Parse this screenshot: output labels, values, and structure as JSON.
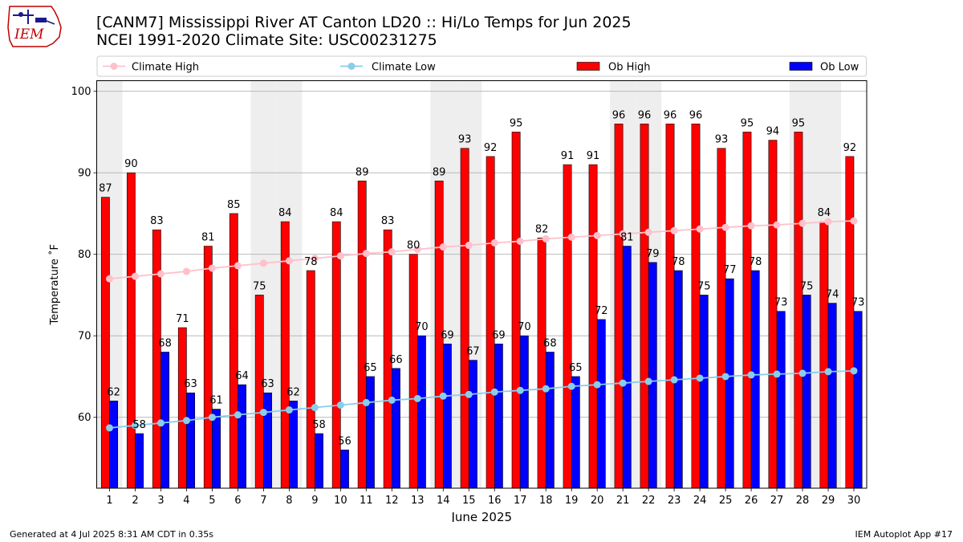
{
  "header": {
    "logo_text": "IEM",
    "title": "[CANM7] Mississippi River  AT Canton LD20 :: Hi/Lo Temps for Jun 2025",
    "subtitle": "NCEI 1991-2020 Climate Site: USC00231275"
  },
  "footer": {
    "generated": "Generated at 4 Jul 2025 8:31 AM CDT in 0.35s",
    "app": "IEM Autoplot App #17"
  },
  "colors": {
    "ob_high": "#ff0000",
    "ob_low": "#0000ff",
    "climate_high": "#ffc0cb",
    "climate_low": "#87ceeb",
    "weekend_shade": "#eeeeee",
    "grid": "#b0b0b0"
  },
  "chart_data": {
    "type": "bar",
    "xlabel": "June 2025",
    "ylabel": "Temperature ˚F",
    "ylim": [
      51.3,
      101.3
    ],
    "yticks": [
      60,
      70,
      80,
      90,
      100
    ],
    "grid": "horizontal",
    "legend_position": "top",
    "categories": [
      1,
      2,
      3,
      4,
      5,
      6,
      7,
      8,
      9,
      10,
      11,
      12,
      13,
      14,
      15,
      16,
      17,
      18,
      19,
      20,
      21,
      22,
      23,
      24,
      25,
      26,
      27,
      28,
      29,
      30
    ],
    "shaded_days": [
      1,
      7,
      8,
      14,
      15,
      21,
      22,
      28,
      29
    ],
    "series": [
      {
        "name": "Climate High",
        "type": "line",
        "values": [
          77.0,
          77.3,
          77.6,
          77.9,
          78.3,
          78.6,
          78.9,
          79.2,
          79.5,
          79.8,
          80.1,
          80.3,
          80.6,
          80.9,
          81.1,
          81.4,
          81.6,
          81.9,
          82.1,
          82.3,
          82.5,
          82.7,
          82.9,
          83.1,
          83.3,
          83.5,
          83.6,
          83.8,
          84.0,
          84.1
        ]
      },
      {
        "name": "Climate Low",
        "type": "line",
        "values": [
          58.7,
          59.0,
          59.3,
          59.6,
          60.0,
          60.3,
          60.6,
          60.9,
          61.2,
          61.5,
          61.8,
          62.1,
          62.3,
          62.6,
          62.8,
          63.1,
          63.3,
          63.5,
          63.8,
          64.0,
          64.2,
          64.4,
          64.6,
          64.8,
          65.0,
          65.2,
          65.3,
          65.4,
          65.6,
          65.7
        ]
      },
      {
        "name": "Ob High",
        "type": "bar",
        "values": [
          87,
          90,
          83,
          71,
          81,
          85,
          75,
          84,
          78,
          84,
          89,
          83,
          80,
          89,
          93,
          92,
          95,
          82,
          91,
          91,
          96,
          96,
          96,
          96,
          93,
          95,
          94,
          95,
          84,
          92
        ]
      },
      {
        "name": "Ob Low",
        "type": "bar",
        "values": [
          62,
          58,
          68,
          63,
          61,
          64,
          63,
          62,
          58,
          56,
          65,
          66,
          70,
          69,
          67,
          69,
          70,
          68,
          65,
          72,
          81,
          79,
          78,
          75,
          77,
          78,
          73,
          75,
          74,
          73
        ]
      }
    ]
  }
}
